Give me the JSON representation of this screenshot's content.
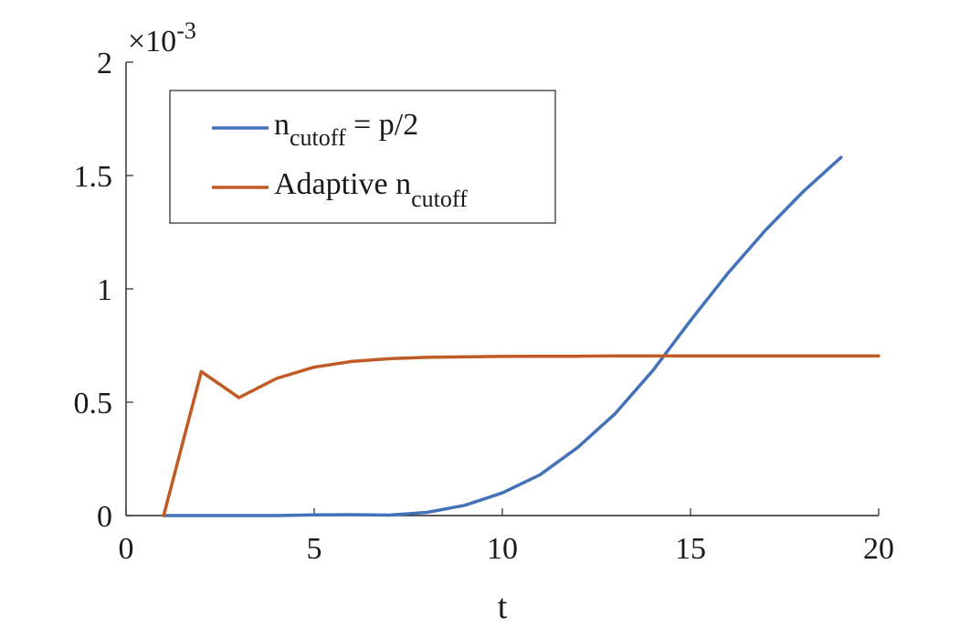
{
  "chart_data": {
    "type": "line",
    "title": "",
    "xlabel": "t",
    "ylabel": "",
    "xlim": [
      0,
      20
    ],
    "ylim": [
      0,
      0.002
    ],
    "y_multiplier": {
      "base": "×10",
      "exponent": "-3"
    },
    "xticks": [
      0,
      5,
      10,
      15,
      20
    ],
    "xtick_labels": [
      "0",
      "5",
      "10",
      "15",
      "20"
    ],
    "yticks": [
      0,
      0.0005,
      0.001,
      0.0015,
      0.002
    ],
    "ytick_labels": [
      "0",
      "0.5",
      "1",
      "1.5",
      "2"
    ],
    "grid": false,
    "legend_position": "top-left",
    "series": [
      {
        "name": "n_cutoff = p/2",
        "legend_main": "n",
        "legend_sub": "cutoff",
        "legend_tail": " = p/2",
        "color": "#4472b8",
        "x": [
          1,
          2,
          3,
          4,
          5,
          6,
          7,
          8,
          9,
          10,
          11,
          12,
          13,
          14,
          15,
          16,
          17,
          18,
          19
        ],
        "y": [
          0,
          0,
          0,
          0,
          3e-06,
          4e-06,
          2e-06,
          1.4e-05,
          4.5e-05,
          0.0001,
          0.00018,
          0.0003,
          0.00045,
          0.00064,
          0.00086,
          0.00107,
          0.00126,
          0.00143,
          0.00158
        ]
      },
      {
        "name": "Adaptive n_cutoff",
        "legend_main": "Adaptive n",
        "legend_sub": "cutoff",
        "legend_tail": "",
        "color": "#bf5b25",
        "x": [
          1,
          2,
          3,
          4,
          5,
          6,
          7,
          8,
          9,
          10,
          11,
          12,
          13,
          14,
          15,
          16,
          17,
          18,
          19,
          20
        ],
        "y": [
          0,
          0.000635,
          0.00052,
          0.000605,
          0.000655,
          0.00068,
          0.000692,
          0.000698,
          0.0007,
          0.000702,
          0.000703,
          0.000703,
          0.000704,
          0.000704,
          0.000704,
          0.000704,
          0.000704,
          0.000704,
          0.000704,
          0.000704
        ]
      }
    ]
  }
}
